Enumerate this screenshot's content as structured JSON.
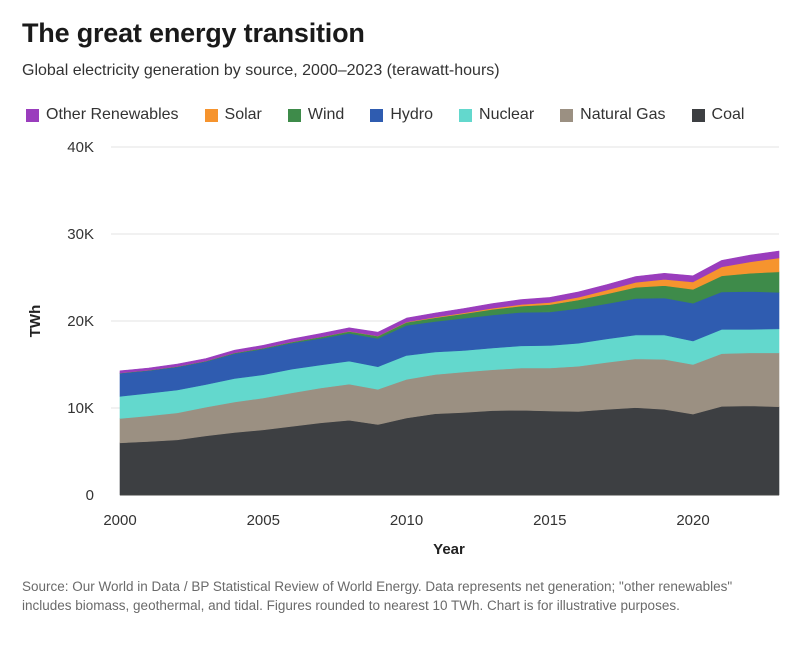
{
  "header": {
    "title": "The great energy transition",
    "subtitle": "Global electricity generation by source, 2000–2023 (terawatt-hours)"
  },
  "footer": {
    "source": "Source: Our World in Data / BP Statistical Review of World Energy. Data represents net generation; \"other renewables\" includes biomass, geothermal, and tidal. Figures rounded to nearest 10 TWh. Chart is for illustrative purposes."
  },
  "chart_data": {
    "type": "area",
    "stacked": true,
    "title": "The great energy transition",
    "subtitle": "Global electricity generation by source, 2000–2023 (terawatt-hours)",
    "xlabel": "Year",
    "ylabel": "TWh",
    "x": [
      2000,
      2001,
      2002,
      2003,
      2004,
      2005,
      2006,
      2007,
      2008,
      2009,
      2010,
      2011,
      2012,
      2013,
      2014,
      2015,
      2016,
      2017,
      2018,
      2019,
      2020,
      2021,
      2022,
      2023
    ],
    "xticks": [
      2000,
      2005,
      2010,
      2015,
      2020
    ],
    "xtick_labels": [
      "2000",
      "2005",
      "2010",
      "2015",
      "2020"
    ],
    "ylim": [
      0,
      40000
    ],
    "yticks": [
      0,
      10000,
      20000,
      30000,
      40000
    ],
    "ytick_labels": [
      "0",
      "10K",
      "20K",
      "30K",
      "40K"
    ],
    "grid": true,
    "legend_position": "top",
    "series": [
      {
        "name": "Coal",
        "color": "#3d3f42",
        "values": [
          6000,
          6150,
          6350,
          6800,
          7200,
          7500,
          7900,
          8300,
          8600,
          8100,
          8850,
          9350,
          9500,
          9700,
          9750,
          9650,
          9600,
          9850,
          10050,
          9850,
          9300,
          10200,
          10250,
          10150
        ]
      },
      {
        "name": "Natural Gas",
        "color": "#9b9082",
        "values": [
          2800,
          2950,
          3100,
          3300,
          3500,
          3650,
          3850,
          4000,
          4150,
          4050,
          4450,
          4500,
          4650,
          4700,
          4850,
          4950,
          5200,
          5400,
          5600,
          5750,
          5700,
          6050,
          6100,
          6200
        ]
      },
      {
        "name": "Nuclear",
        "color": "#63d8cd",
        "values": [
          2550,
          2600,
          2620,
          2600,
          2700,
          2680,
          2720,
          2650,
          2640,
          2600,
          2750,
          2600,
          2470,
          2500,
          2550,
          2600,
          2650,
          2700,
          2750,
          2800,
          2700,
          2800,
          2700,
          2750
        ]
      },
      {
        "name": "Hydro",
        "color": "#2f5cb0",
        "values": [
          2650,
          2600,
          2650,
          2650,
          2850,
          2950,
          3000,
          3050,
          3200,
          3250,
          3450,
          3500,
          3700,
          3800,
          3850,
          3850,
          4000,
          4050,
          4200,
          4250,
          4350,
          4300,
          4350,
          4200
        ]
      },
      {
        "name": "Wind",
        "color": "#3e8b4a",
        "values": [
          30,
          40,
          50,
          60,
          90,
          100,
          130,
          170,
          220,
          270,
          350,
          430,
          520,
          640,
          710,
          830,
          960,
          1130,
          1270,
          1420,
          1590,
          1850,
          2100,
          2350
        ]
      },
      {
        "name": "Solar",
        "color": "#f6942e",
        "values": [
          1,
          2,
          2,
          3,
          3,
          4,
          5,
          7,
          12,
          20,
          32,
          63,
          100,
          135,
          190,
          250,
          330,
          440,
          580,
          720,
          850,
          1030,
          1300,
          1600
        ]
      },
      {
        "name": "Other Renewables",
        "color": "#9a3dbd",
        "values": [
          250,
          260,
          270,
          280,
          300,
          320,
          340,
          370,
          400,
          420,
          450,
          480,
          500,
          530,
          560,
          580,
          600,
          630,
          660,
          690,
          710,
          740,
          770,
          800
        ]
      }
    ],
    "legend_order": [
      "Other Renewables",
      "Solar",
      "Wind",
      "Hydro",
      "Nuclear",
      "Natural Gas",
      "Coal"
    ]
  }
}
